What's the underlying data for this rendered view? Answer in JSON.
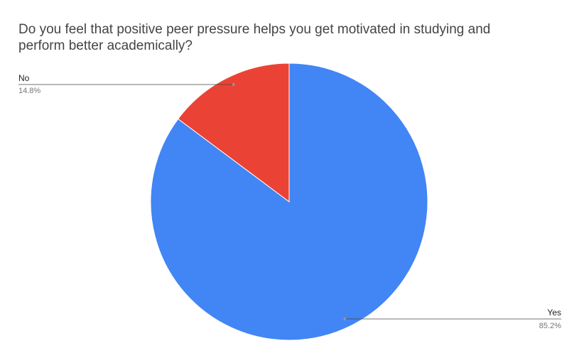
{
  "chart_data": {
    "type": "pie",
    "title_lines": [
      "Do you feel that positive peer pressure helps you get motivated in studying and",
      "perform better academically?"
    ],
    "slices": [
      {
        "label": "Yes",
        "value": 85.2,
        "value_label": "85.2%",
        "color": "#4285F4"
      },
      {
        "label": "No",
        "value": 14.8,
        "value_label": "14.8%",
        "color": "#EA4335"
      }
    ],
    "start_angle_deg": 0,
    "direction": "clockwise",
    "legend": "none",
    "label_style": "leader-lines"
  }
}
